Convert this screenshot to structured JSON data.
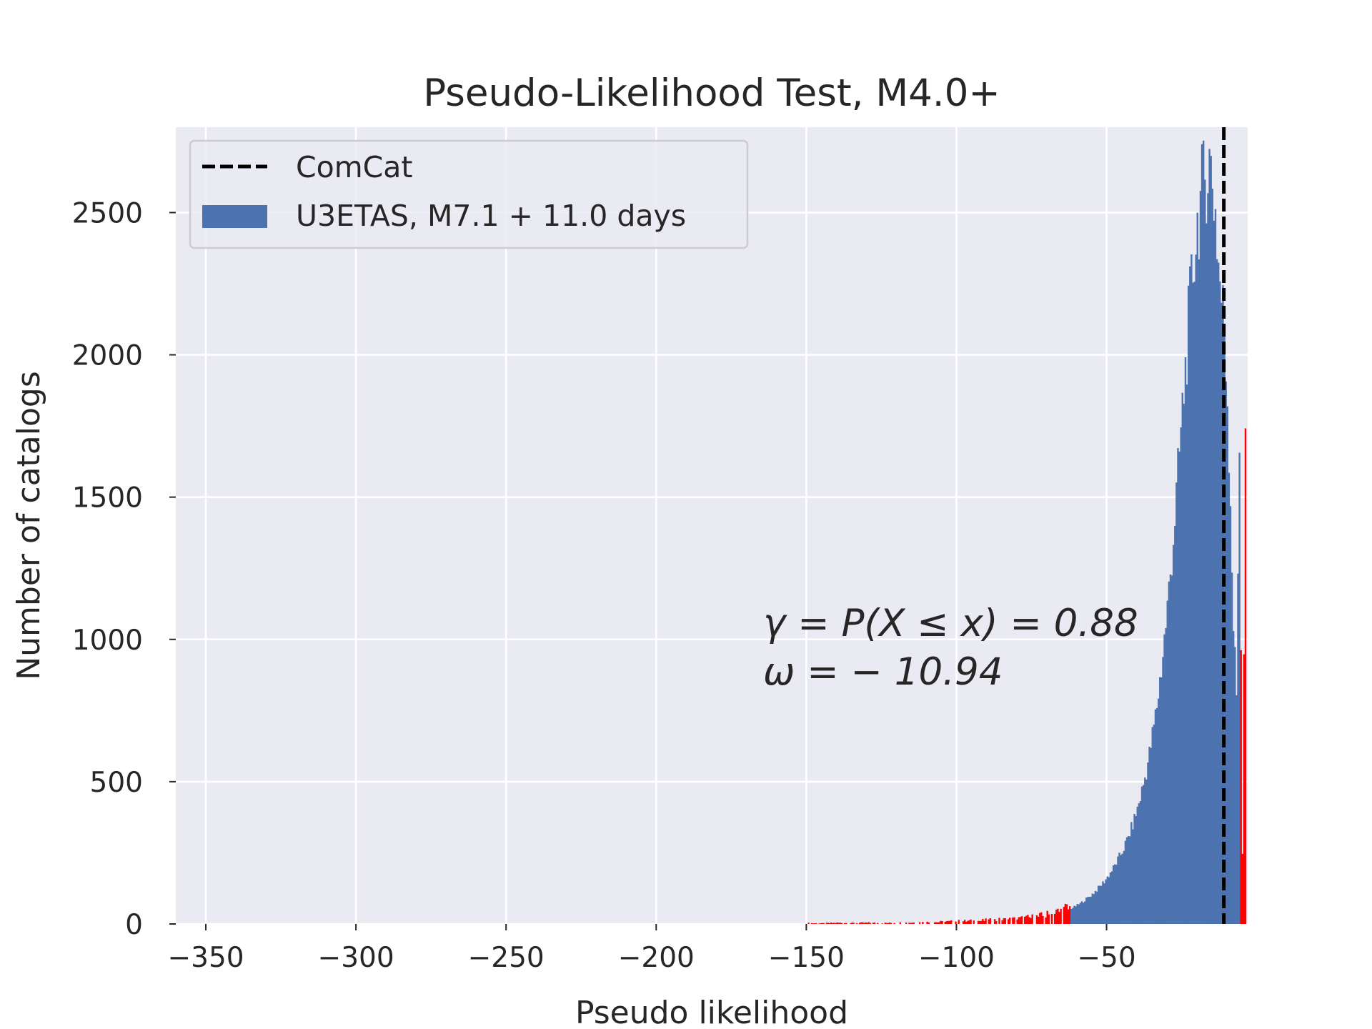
{
  "chart_data": {
    "type": "bar",
    "title": "Pseudo-Likelihood Test, M4.0+",
    "xlabel": "Pseudo likelihood",
    "ylabel": "Number of catalogs",
    "xlim": [
      -360,
      -3
    ],
    "ylim": [
      0,
      2800
    ],
    "xticks": [
      -350,
      -300,
      -250,
      -200,
      -150,
      -100,
      -50
    ],
    "xtick_labels": [
      "−350",
      "−300",
      "−250",
      "−200",
      "−150",
      "−100",
      "−50"
    ],
    "yticks": [
      0,
      500,
      1000,
      1500,
      2000,
      2500
    ],
    "ytick_labels": [
      "0",
      "500",
      "1000",
      "1500",
      "2000",
      "2500"
    ],
    "grid": true,
    "legend_position": "top-left",
    "legend": {
      "comcat_label": "ComCat",
      "sim_label": "U3ETAS, M7.1 + 11.0 days"
    },
    "colors": {
      "background": "#eaeaf2",
      "grid": "#ffffff",
      "sim": "#4c72b0",
      "outside": "#ff0000",
      "observed": "#000000",
      "text": "#262626"
    },
    "observed_value": -10.94,
    "outside_region_below": -62,
    "annotation": {
      "line1": "γ = P(X ≤ x) = 0.88",
      "line2": "ω = − 10.94"
    },
    "histogram": {
      "bin_width": 0.5,
      "bins": [
        [
          -150,
          3
        ],
        [
          -145,
          2
        ],
        [
          -140,
          4
        ],
        [
          -135,
          3
        ],
        [
          -130,
          4
        ],
        [
          -125,
          3
        ],
        [
          -120,
          4
        ],
        [
          -115,
          5
        ],
        [
          -110,
          6
        ],
        [
          -105,
          7
        ],
        [
          -100,
          9
        ],
        [
          -95,
          10
        ],
        [
          -90,
          12
        ],
        [
          -85,
          14
        ],
        [
          -80,
          17
        ],
        [
          -77,
          20
        ],
        [
          -75,
          22
        ],
        [
          -72,
          26
        ],
        [
          -70,
          30
        ],
        [
          -68,
          36
        ],
        [
          -66,
          42
        ],
        [
          -64,
          48
        ],
        [
          -62,
          55
        ],
        [
          -61,
          60
        ],
        [
          -60,
          66
        ],
        [
          -59,
          72
        ],
        [
          -58,
          80
        ],
        [
          -57,
          88
        ],
        [
          -56,
          96
        ],
        [
          -55,
          105
        ],
        [
          -54,
          115
        ],
        [
          -53,
          126
        ],
        [
          -52,
          138
        ],
        [
          -51,
          150
        ],
        [
          -50,
          165
        ],
        [
          -49,
          180
        ],
        [
          -48,
          196
        ],
        [
          -47,
          215
        ],
        [
          -46,
          235
        ],
        [
          -45,
          255
        ],
        [
          -44,
          280
        ],
        [
          -43,
          305
        ],
        [
          -42,
          335
        ],
        [
          -41,
          368
        ],
        [
          -40,
          405
        ],
        [
          -39,
          445
        ],
        [
          -38,
          490
        ],
        [
          -37,
          540
        ],
        [
          -36,
          595
        ],
        [
          -35,
          660
        ],
        [
          -34,
          730
        ],
        [
          -33,
          810
        ],
        [
          -32,
          900
        ],
        [
          -31,
          1000
        ],
        [
          -30,
          1110
        ],
        [
          -29,
          1230
        ],
        [
          -28,
          1360
        ],
        [
          -27,
          1500
        ],
        [
          -26,
          1650
        ],
        [
          -25,
          1800
        ],
        [
          -24,
          1950
        ],
        [
          -23,
          2100
        ],
        [
          -22,
          2240
        ],
        [
          -21,
          2360
        ],
        [
          -20,
          2460
        ],
        [
          -19,
          2540
        ],
        [
          -18,
          2600
        ],
        [
          -17,
          2640
        ],
        [
          -16,
          2680
        ],
        [
          -15,
          2620
        ],
        [
          -14,
          2500
        ],
        [
          -13,
          2320
        ],
        [
          -12,
          2200
        ],
        [
          -11,
          2100
        ],
        [
          -10,
          1850
        ],
        [
          -9,
          1500
        ],
        [
          -8,
          1050
        ],
        [
          -7,
          800
        ],
        [
          -6,
          1720
        ],
        [
          -5,
          240
        ],
        [
          -4,
          1650
        ]
      ]
    }
  }
}
